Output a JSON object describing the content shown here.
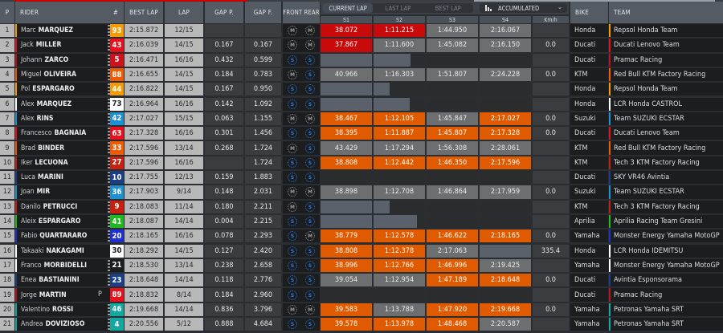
{
  "header": {
    "p": "P",
    "rider": "RIDER",
    "number": "#",
    "best_lap": "BEST LAP",
    "lap": "LAP",
    "gap_p": "GAP P.",
    "gap_f": "GAP F.",
    "front_rear": "FRONT REAR",
    "bike": "BIKE",
    "team": "TEAM"
  },
  "lap_selector": {
    "options": [
      "CURRENT LAP",
      "LAST LAP",
      "BEST LAP"
    ],
    "active": "CURRENT LAP"
  },
  "mode_dropdown": {
    "label": "ACCUMULATED",
    "icon": "bar-chart-icon",
    "chevron": "⌄"
  },
  "sector_headers": [
    "S1",
    "S2",
    "S3",
    "S4",
    "Km/h"
  ],
  "colors": {
    "sector_red": "#c80a0a",
    "sector_orange": "#e05a00",
    "sector_grey": "#6c6e70",
    "tyre_medium": "#8c8e90",
    "tyre_soft": "#1f6fd0"
  },
  "rows": [
    {
      "pos": "1",
      "first": "Marc",
      "last": "MARQUEZ",
      "num": "93",
      "num_bg": "#f59a00",
      "num_fg": "#ffffff",
      "team_color": "#f59a00",
      "flag": true,
      "pit": "",
      "best": "2:15.872",
      "lap": "12/15",
      "gap_p": "",
      "gap_f": "",
      "front": "M",
      "rear": "M",
      "s1": "38.072",
      "s1c": "red",
      "s2": "1:11.215",
      "s2c": "red",
      "s3": "1:44.950",
      "s3c": "grey",
      "s4": "2:16.067",
      "s4c": "grey",
      "kmh": "",
      "bike": "Honda",
      "team": "Repsol Honda Team"
    },
    {
      "pos": "2",
      "first": "Jack",
      "last": "MILLER",
      "num": "43",
      "num_bg": "#e8101a",
      "num_fg": "#ffffff",
      "team_color": "#e8101a",
      "flag": true,
      "pit": "",
      "best": "2:16.039",
      "lap": "14/15",
      "gap_p": "0.167",
      "gap_f": "0.167",
      "front": "M",
      "rear": "M",
      "s1": "37.867",
      "s1c": "red",
      "s2": "1:11.600",
      "s2c": "grey",
      "s3": "1:45.082",
      "s3c": "grey",
      "s4": "2:16.150",
      "s4c": "grey",
      "kmh": "0.0",
      "bike": "Ducati",
      "team": "Ducati Lenovo Team"
    },
    {
      "pos": "3",
      "first": "Johann",
      "last": "ZARCO",
      "num": "5",
      "num_bg": "#d0101c",
      "num_fg": "#ffffff",
      "team_color": "#c0101a",
      "flag": true,
      "pit": "",
      "best": "2:16.471",
      "lap": "16/16",
      "gap_p": "0.432",
      "gap_f": "0.599",
      "front": "S",
      "rear": "S",
      "s1": "",
      "s1c": "slate",
      "s1p": 100,
      "s2": "",
      "s2c": "",
      "s2p": 72,
      "s3": "",
      "s3c": "",
      "s4": "",
      "s4c": "",
      "kmh": "",
      "bike": "Ducati",
      "team": "Pramac Racing"
    },
    {
      "pos": "4",
      "first": "Miguel",
      "last": "OLIVEIRA",
      "num": "88",
      "num_bg": "#f05a00",
      "num_fg": "#ffffff",
      "team_color": "#f05a00",
      "flag": true,
      "pit": "",
      "best": "2:16.655",
      "lap": "14/15",
      "gap_p": "0.184",
      "gap_f": "0.783",
      "front": "M",
      "rear": "S",
      "s1": "40.966",
      "s1c": "grey",
      "s2": "1:16.303",
      "s2c": "grey",
      "s3": "1:51.807",
      "s3c": "grey",
      "s4": "2:24.228",
      "s4c": "grey",
      "kmh": "0.0",
      "bike": "KTM",
      "team": "Red Bull KTM Factory Racing"
    },
    {
      "pos": "5",
      "first": "Pol",
      "last": "ESPARGARO",
      "num": "44",
      "num_bg": "#f59a00",
      "num_fg": "#ffffff",
      "team_color": "#f59a00",
      "flag": true,
      "pit": "",
      "best": "2:16.822",
      "lap": "14/15",
      "gap_p": "0.167",
      "gap_f": "0.950",
      "front": "S",
      "rear": "S",
      "s1": "",
      "s1c": "slate",
      "s1p": 100,
      "s2": "",
      "s2c": "",
      "s2p": 32,
      "s3": "",
      "s3c": "",
      "s4": "",
      "s4c": "",
      "kmh": "",
      "bike": "Honda",
      "team": "Repsol Honda Team"
    },
    {
      "pos": "6",
      "first": "Alex",
      "last": "MARQUEZ",
      "num": "73",
      "num_bg": "#ffffff",
      "num_fg": "#1c1d1f",
      "team_color": "#ffffff",
      "flag": true,
      "pit": "",
      "best": "2:16.964",
      "lap": "16/16",
      "gap_p": "0.142",
      "gap_f": "1.092",
      "front": "S",
      "rear": "S",
      "s1": "",
      "s1c": "slate",
      "s1p": 100,
      "s2": "",
      "s2c": "",
      "s2p": 70,
      "s3": "",
      "s3c": "",
      "s4": "",
      "s4c": "",
      "kmh": "",
      "bike": "Honda",
      "team": "LCR Honda CASTROL"
    },
    {
      "pos": "7",
      "first": "Alex",
      "last": "RINS",
      "num": "42",
      "num_bg": "#1e90d0",
      "num_fg": "#ffffff",
      "team_color": "#1e90d0",
      "flag": true,
      "pit": "",
      "best": "2:17.027",
      "lap": "15/15",
      "gap_p": "0.063",
      "gap_f": "1.155",
      "front": "M",
      "rear": "M",
      "s1": "38.467",
      "s1c": "orange",
      "s2": "1:12.105",
      "s2c": "orange",
      "s3": "1:45.847",
      "s3c": "grey",
      "s4": "2:17.027",
      "s4c": "orange",
      "kmh": "0.0",
      "bike": "Suzuki",
      "team": "Team SUZUKI ECSTAR"
    },
    {
      "pos": "8",
      "first": "Francesco",
      "last": "BAGNAIA",
      "num": "63",
      "num_bg": "#e8101a",
      "num_fg": "#ffffff",
      "team_color": "#e8101a",
      "flag": true,
      "pit": "",
      "best": "2:17.328",
      "lap": "16/16",
      "gap_p": "0.301",
      "gap_f": "1.456",
      "front": "S",
      "rear": "S",
      "s1": "38.395",
      "s1c": "orange",
      "s2": "1:11.887",
      "s2c": "orange",
      "s3": "1:45.807",
      "s3c": "orange",
      "s4": "2:17.328",
      "s4c": "orange",
      "kmh": "0.0",
      "bike": "Ducati",
      "team": "Ducati Lenovo Team"
    },
    {
      "pos": "9",
      "first": "Brad",
      "last": "BINDER",
      "num": "33",
      "num_bg": "#f05a00",
      "num_fg": "#ffffff",
      "team_color": "#f05a00",
      "flag": true,
      "pit": "",
      "best": "2:17.596",
      "lap": "13/14",
      "gap_p": "0.268",
      "gap_f": "1.724",
      "front": "M",
      "rear": "S",
      "s1": "43.429",
      "s1c": "grey",
      "s2": "1:17.294",
      "s2c": "grey",
      "s3": "1:56.308",
      "s3c": "grey",
      "s4": "2:28.061",
      "s4c": "grey",
      "kmh": "",
      "bike": "KTM",
      "team": "Red Bull KTM Factory Racing"
    },
    {
      "pos": "10",
      "first": "Iker",
      "last": "LECUONA",
      "num": "27",
      "num_bg": "#c8200e",
      "num_fg": "#ffffff",
      "team_color": "#c8200e",
      "flag": true,
      "pit": "",
      "best": "2:17.596",
      "lap": "16/16",
      "gap_p": "",
      "gap_f": "1.724",
      "front": "S",
      "rear": "S",
      "s1": "38.808",
      "s1c": "orange",
      "s2": "1:12.442",
      "s2c": "orange",
      "s3": "1:46.350",
      "s3c": "orange",
      "s4": "2:17.596",
      "s4c": "orange",
      "kmh": "",
      "bike": "KTM",
      "team": "Tech 3 KTM Factory Racing"
    },
    {
      "pos": "11",
      "first": "Luca",
      "last": "MARINI",
      "num": "10",
      "num_bg": "#1b3f86",
      "num_fg": "#ffffff",
      "team_color": "#1b3f86",
      "flag": true,
      "pit": "",
      "best": "2:17.755",
      "lap": "12/13",
      "gap_p": "0.159",
      "gap_f": "1.883",
      "front": "S",
      "rear": "S",
      "s1": "",
      "s1c": "",
      "s2": "",
      "s2c": "",
      "s3": "",
      "s3c": "",
      "s4": "",
      "s4c": "",
      "kmh": "",
      "bike": "Ducati",
      "team": "SKY VR46 Avintia"
    },
    {
      "pos": "12",
      "first": "Joan",
      "last": "MIR",
      "num": "36",
      "num_bg": "#1e90d0",
      "num_fg": "#ffffff",
      "team_color": "#1e90d0",
      "flag": true,
      "pit": "",
      "best": "2:17.903",
      "lap": "9/14",
      "gap_p": "0.148",
      "gap_f": "2.031",
      "front": "M",
      "rear": "M",
      "s1": "38.898",
      "s1c": "grey",
      "s2": "1:12.708",
      "s2c": "grey",
      "s3": "1:46.864",
      "s3c": "grey",
      "s4": "2:17.959",
      "s4c": "grey",
      "kmh": "0.0",
      "bike": "Suzuki",
      "team": "Team SUZUKI ECSTAR"
    },
    {
      "pos": "13",
      "first": "Danilo",
      "last": "PETRUCCI",
      "num": "9",
      "num_bg": "#c8200e",
      "num_fg": "#ffffff",
      "team_color": "#c8200e",
      "flag": true,
      "pit": "",
      "best": "2:18.083",
      "lap": "11/14",
      "gap_p": "0.180",
      "gap_f": "2.211",
      "front": "M",
      "rear": "S",
      "s1": "",
      "s1c": "slate",
      "s1p": 100,
      "s2": "",
      "s2c": "",
      "s2p": 32,
      "s3": "",
      "s3c": "",
      "s4": "",
      "s4c": "",
      "kmh": "",
      "bike": "KTM",
      "team": "Tech 3 KTM Factory Racing"
    },
    {
      "pos": "14",
      "first": "Aleix",
      "last": "ESPARGARO",
      "num": "41",
      "num_bg": "#1fb81f",
      "num_fg": "#ffffff",
      "team_color": "#1fb81f",
      "flag": true,
      "pit": "",
      "best": "2:18.087",
      "lap": "14/14",
      "gap_p": "0.004",
      "gap_f": "2.215",
      "front": "S",
      "rear": "S",
      "s1": "",
      "s1c": "slate",
      "s1p": 100,
      "s2": "",
      "s2c": "",
      "s2p": 84,
      "s3": "",
      "s3c": "",
      "s4": "",
      "s4c": "",
      "kmh": "",
      "bike": "Aprilia",
      "team": "Aprilia Racing Team Gresini"
    },
    {
      "pos": "15",
      "first": "Fabio",
      "last": "QUARTARARO",
      "num": "20",
      "num_bg": "#2030d0",
      "num_fg": "#ffffff",
      "team_color": "#2030d0",
      "flag": true,
      "pit": "",
      "best": "2:18.165",
      "lap": "16/16",
      "gap_p": "0.078",
      "gap_f": "2.293",
      "front": "S",
      "rear": "M",
      "s1": "38.779",
      "s1c": "orange",
      "s2": "1:12.578",
      "s2c": "orange",
      "s3": "1:46.622",
      "s3c": "orange",
      "s4": "2:18.165",
      "s4c": "orange",
      "kmh": "0.0",
      "bike": "Yamaha",
      "team": "Monster Energy Yamaha MotoGP"
    },
    {
      "pos": "16",
      "first": "Takaaki",
      "last": "NAKAGAMI",
      "num": "30",
      "num_bg": "#ffffff",
      "num_fg": "#1c1d1f",
      "team_color": "#ffffff",
      "flag": false,
      "pit": "",
      "best": "2:18.292",
      "lap": "14/15",
      "gap_p": "0.127",
      "gap_f": "2.420",
      "front": "S",
      "rear": "S",
      "s1": "38.808",
      "s1c": "orange",
      "s2": "1:12.378",
      "s2c": "orange",
      "s3": "2:17.063",
      "s3c": "grey",
      "s4": "",
      "s4c": "slate",
      "kmh": "335.4",
      "bike": "Honda",
      "team": "LCR Honda IDEMITSU"
    },
    {
      "pos": "17",
      "first": "Franco",
      "last": "MORBIDELLI",
      "num": "21",
      "num_bg": "#1c1d1f",
      "num_fg": "#ffffff",
      "team_color": "#ffffff",
      "flag": true,
      "pit": "",
      "best": "2:18.530",
      "lap": "13/14",
      "gap_p": "0.238",
      "gap_f": "2.658",
      "front": "S",
      "rear": "S",
      "s1": "38.996",
      "s1c": "orange",
      "s2": "1:12.766",
      "s2c": "orange",
      "s3": "1:46.996",
      "s3c": "orange",
      "s4": "2:19.425",
      "s4c": "grey",
      "kmh": "",
      "bike": "Yamaha",
      "team": "Monster Energy Yamaha MotoGP"
    },
    {
      "pos": "18",
      "first": "Enea",
      "last": "BASTIANINI",
      "num": "23",
      "num_bg": "#1b3f86",
      "num_fg": "#ffffff",
      "team_color": "#1b3f86",
      "flag": true,
      "pit": "",
      "best": "2:18.648",
      "lap": "14/14",
      "gap_p": "0.118",
      "gap_f": "2.776",
      "front": "S",
      "rear": "S",
      "s1": "39.054",
      "s1c": "grey",
      "s2": "1:12.954",
      "s2c": "grey",
      "s3": "1:47.189",
      "s3c": "orange",
      "s4": "2:18.648",
      "s4c": "orange",
      "kmh": "0.0",
      "bike": "Ducati",
      "team": "Avintia Esponsorama"
    },
    {
      "pos": "19",
      "first": "Jorge",
      "last": "MARTIN",
      "num": "89",
      "num_bg": "#e8101a",
      "num_fg": "#ffffff",
      "team_color": "#c0101a",
      "flag": false,
      "pit": "P",
      "best": "2:18.832",
      "lap": "8/14",
      "gap_p": "0.184",
      "gap_f": "2.960",
      "front": "S",
      "rear": "S",
      "s1": "",
      "s1c": "",
      "s2": "",
      "s2c": "",
      "s3": "",
      "s3c": "",
      "s4": "",
      "s4c": "",
      "kmh": "",
      "bike": "Ducati",
      "team": "Pramac Racing"
    },
    {
      "pos": "20",
      "first": "Valentino",
      "last": "ROSSI",
      "num": "46",
      "num_bg": "#12a8a0",
      "num_fg": "#ffffff",
      "team_color": "#12a8a0",
      "flag": true,
      "pit": "",
      "best": "2:19.668",
      "lap": "14/14",
      "gap_p": "0.836",
      "gap_f": "3.796",
      "front": "M",
      "rear": "M",
      "s1": "39.583",
      "s1c": "orange",
      "s2": "1:13.788",
      "s2c": "grey",
      "s3": "1:47.920",
      "s3c": "orange",
      "s4": "2:19.668",
      "s4c": "orange",
      "kmh": "0.0",
      "bike": "Yamaha",
      "team": "Petronas Yamaha SRT"
    },
    {
      "pos": "21",
      "first": "Andrea",
      "last": "DOVIZIOSO",
      "num": "4",
      "num_bg": "#12a8a0",
      "num_fg": "#ffffff",
      "team_color": "#12a8a0",
      "flag": true,
      "pit": "",
      "best": "2:20.556",
      "lap": "5/12",
      "gap_p": "0.888",
      "gap_f": "4.684",
      "front": "S",
      "rear": "S",
      "s1": "39.578",
      "s1c": "orange",
      "s2": "1:13.978",
      "s2c": "orange",
      "s3": "1:48.468",
      "s3c": "orange",
      "s4": "2:20.587",
      "s4c": "grey",
      "kmh": "",
      "bike": "Yamaha",
      "team": "Petronas Yamaha SRT"
    }
  ]
}
